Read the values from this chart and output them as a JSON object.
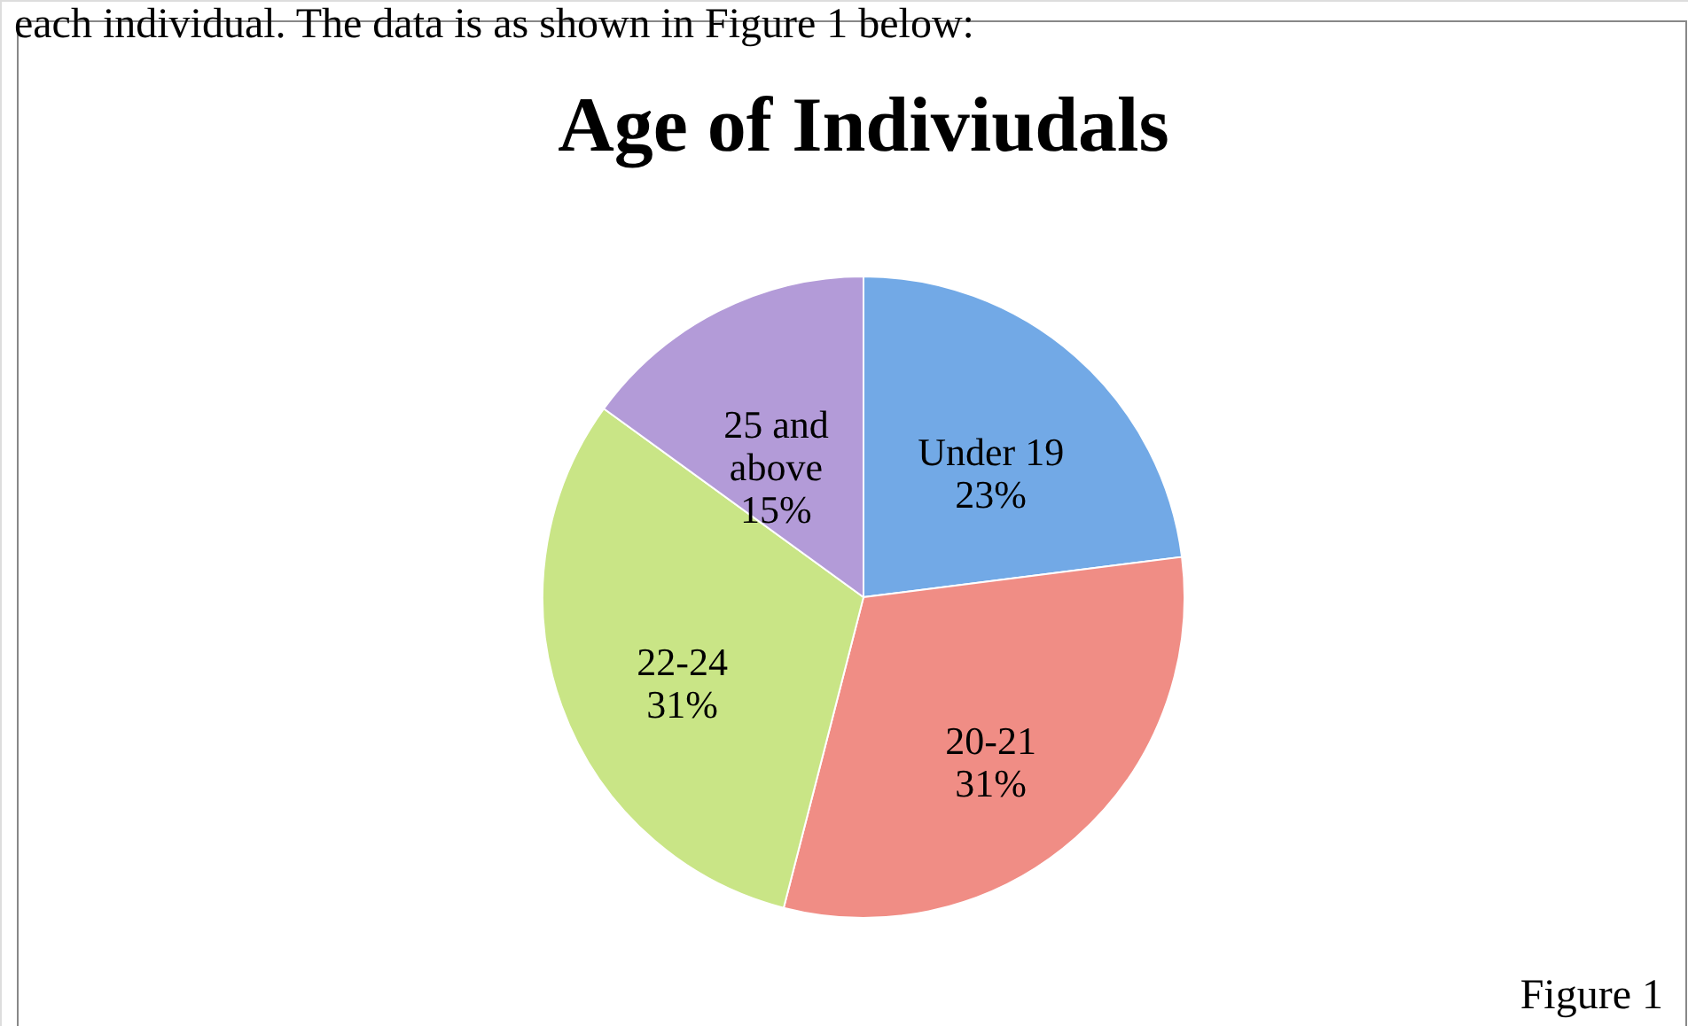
{
  "chart_data": {
    "type": "pie",
    "title": "Age of Indiviudals",
    "categories": [
      "Under 19",
      "20-21",
      "22-24",
      "25 and above"
    ],
    "values": [
      23,
      31,
      31,
      15
    ],
    "colors": [
      "#72a9e6",
      "#f08d85",
      "#c9e586",
      "#b39bd8"
    ],
    "value_labels": [
      "23%",
      "31%",
      "31%",
      "15%"
    ],
    "annotations": [
      "each individual. The data is as shown in Figure 1 below:",
      "Figure 1"
    ]
  }
}
